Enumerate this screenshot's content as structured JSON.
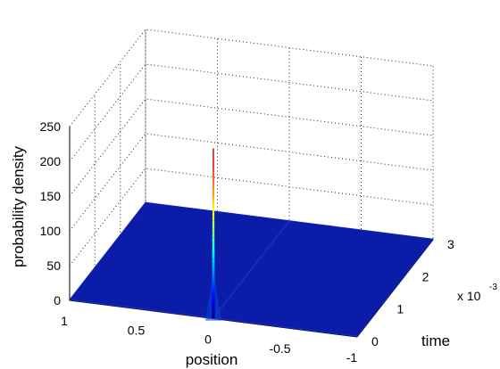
{
  "chart_data": {
    "type": "surface",
    "title": "",
    "xlabel": "position",
    "ylabel": "time",
    "zlabel": "probability density",
    "xlim": [
      -1,
      1
    ],
    "ylim": [
      0,
      3
    ],
    "zlim": [
      0,
      250
    ],
    "y_multiplier": "x 10",
    "y_multiplier_exponent": "-3",
    "x_ticks": [
      "1",
      "0.5",
      "0",
      "-0.5",
      "-1"
    ],
    "y_ticks": [
      "0",
      "1",
      "2",
      "3"
    ],
    "z_ticks": [
      "0",
      "50",
      "100",
      "150",
      "200",
      "250"
    ],
    "grid": true,
    "colormap": "jet",
    "baseline_density": 1,
    "peak": {
      "position": 0,
      "time": 0,
      "density": 245
    },
    "surface_color": "#0a1ca8",
    "surface_edge_color": "#0d24b8"
  }
}
